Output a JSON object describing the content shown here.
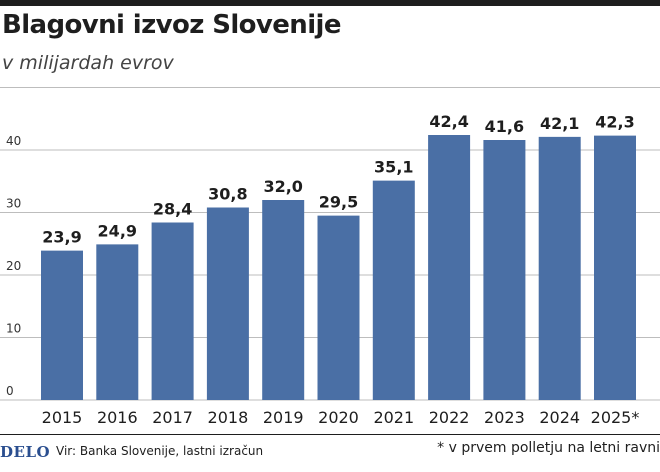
{
  "header": {
    "title": "Blagovni izvoz Slovenije",
    "subtitle": "v milijardah evrov"
  },
  "footer": {
    "logo": "DELO",
    "source": "Vir: Banka Slovenije, lastni izračun",
    "footnote": "* v prvem polletju na letni ravni"
  },
  "colors": {
    "bar": "#4a6fa5",
    "grid": "#bdbdbd",
    "rule": "#1e1e1e"
  },
  "chart_data": {
    "type": "bar",
    "title": "Blagovni izvoz Slovenije",
    "subtitle": "v milijardah evrov",
    "xlabel": "",
    "ylabel": "",
    "categories": [
      "2015",
      "2016",
      "2017",
      "2018",
      "2019",
      "2020",
      "2021",
      "2022",
      "2023",
      "2024",
      "2025*"
    ],
    "values": [
      23.9,
      24.9,
      28.4,
      30.8,
      32.0,
      29.5,
      35.1,
      42.4,
      41.6,
      42.1,
      42.3
    ],
    "value_labels": [
      "23,9",
      "24,9",
      "28,4",
      "30,8",
      "32,0",
      "29,5",
      "35,1",
      "42,4",
      "41,6",
      "42,1",
      "42,3"
    ],
    "yticks": [
      0,
      10,
      20,
      30,
      40
    ],
    "ylim": [
      0,
      48
    ],
    "grid": true,
    "legend": "none"
  }
}
